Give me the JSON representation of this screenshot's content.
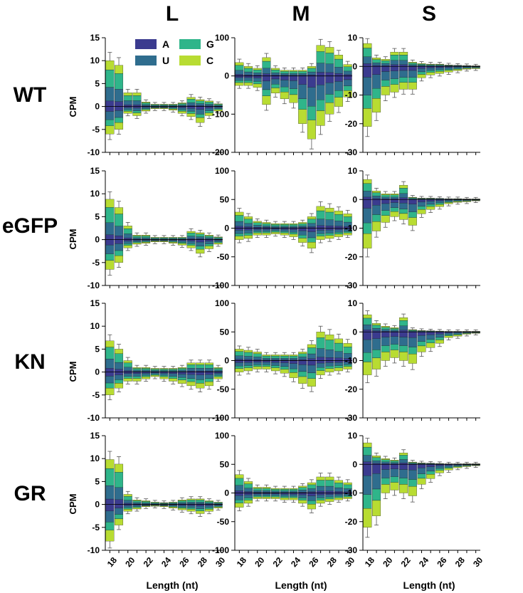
{
  "chart_data": {
    "type": "bar",
    "subtype": "stacked-diverging-grid",
    "columns": [
      "L",
      "M",
      "S"
    ],
    "rows": [
      "WT",
      "eGFP",
      "KN",
      "GR"
    ],
    "ylabel": "CPM",
    "xlabel": "Length (nt)",
    "x": [
      18,
      19,
      20,
      21,
      22,
      23,
      24,
      25,
      26,
      27,
      28,
      29,
      30
    ],
    "x_tick_labels": [
      "18",
      "20",
      "22",
      "24",
      "26",
      "28",
      "30"
    ],
    "legend": [
      {
        "name": "A",
        "color": "#3b3b8f"
      },
      {
        "name": "G",
        "color": "#2fb58a"
      },
      {
        "name": "U",
        "color": "#2f6d8e"
      },
      {
        "name": "C",
        "color": "#b8dc32"
      }
    ],
    "ylims": {
      "L": [
        -10,
        15
      ],
      "M": [
        [
          -200,
          100
        ],
        [
          -100,
          100
        ],
        [
          -100,
          100
        ],
        [
          -100,
          100
        ]
      ],
      "S": [
        -30,
        10
      ]
    },
    "yticks": {
      "L": [
        "15",
        "10",
        "5",
        "0",
        "-5",
        "-10"
      ],
      "M_WT": [
        "100",
        "0",
        "-100",
        "-200"
      ],
      "M": [
        "100",
        "50",
        "0",
        "-50",
        "-100"
      ],
      "S": [
        "10",
        "0",
        "-10",
        "-20",
        "-30"
      ]
    },
    "panels": [
      {
        "row": "WT",
        "col": "L",
        "pos": [
          10,
          9,
          3,
          3,
          1,
          0.5,
          0.5,
          0.5,
          0.8,
          2,
          1.5,
          1.2,
          0.6
        ],
        "neg": [
          -6,
          -5,
          -1.5,
          -2,
          -1,
          -0.5,
          -0.5,
          -0.8,
          -1.5,
          -2.2,
          -3.5,
          -2,
          -1
        ]
      },
      {
        "row": "WT",
        "col": "M",
        "pos": [
          35,
          25,
          20,
          48,
          20,
          15,
          15,
          15,
          25,
          80,
          75,
          55,
          30
        ],
        "neg": [
          -25,
          -25,
          -30,
          -75,
          -45,
          -60,
          -70,
          -125,
          -165,
          -130,
          -100,
          -80,
          -55
        ]
      },
      {
        "row": "WT",
        "col": "S",
        "pos": [
          8,
          3,
          2.5,
          5,
          5,
          1.5,
          1,
          0.8,
          0.8,
          0.5,
          0.4,
          0.3,
          0.2
        ],
        "neg": [
          -21,
          -16,
          -10,
          -9,
          -8,
          -8,
          -4,
          -3,
          -2.5,
          -2,
          -1.5,
          -1,
          -0.8
        ]
      },
      {
        "row": "eGFP",
        "col": "L",
        "pos": [
          8.8,
          7,
          3,
          1,
          1,
          0.5,
          0.5,
          0.5,
          0.5,
          1.8,
          1.5,
          1,
          0.6
        ],
        "neg": [
          -6.5,
          -5,
          -1.8,
          -1,
          -0.8,
          -0.5,
          -0.5,
          -0.8,
          -1.2,
          -1.8,
          -3,
          -2,
          -1
        ]
      },
      {
        "row": "eGFP",
        "col": "M",
        "pos": [
          28,
          20,
          12,
          10,
          8,
          8,
          8,
          10,
          20,
          38,
          35,
          30,
          25
        ],
        "neg": [
          -20,
          -18,
          -12,
          -12,
          -10,
          -12,
          -15,
          -25,
          -35,
          -20,
          -18,
          -15,
          -12
        ]
      },
      {
        "row": "eGFP",
        "col": "S",
        "pos": [
          7,
          3,
          2,
          2,
          5,
          0.8,
          0.5,
          0.5,
          0.4,
          0.3,
          0.3,
          0.2,
          0.2
        ],
        "neg": [
          -17,
          -11,
          -8,
          -6,
          -7,
          -9,
          -5,
          -3.5,
          -2.5,
          -1.5,
          -1,
          -0.8,
          -0.5
        ]
      },
      {
        "row": "KN",
        "col": "L",
        "pos": [
          6.8,
          5,
          2.5,
          1,
          1,
          0.8,
          0.8,
          0.8,
          1,
          2,
          2,
          2,
          1
        ],
        "neg": [
          -5,
          -3.5,
          -2,
          -2,
          -1.5,
          -1,
          -1.5,
          -2,
          -2.5,
          -3,
          -3.5,
          -3,
          -1.5
        ]
      },
      {
        "row": "KN",
        "col": "M",
        "pos": [
          20,
          18,
          15,
          10,
          10,
          10,
          10,
          15,
          28,
          50,
          45,
          38,
          30
        ],
        "neg": [
          -20,
          -18,
          -15,
          -15,
          -18,
          -22,
          -30,
          -40,
          -45,
          -25,
          -20,
          -18,
          -15
        ]
      },
      {
        "row": "KN",
        "col": "S",
        "pos": [
          6,
          3,
          2,
          1.5,
          5,
          0.8,
          0.5,
          0.4,
          0.3,
          0.2,
          0.2,
          0.2,
          0.2
        ],
        "neg": [
          -15,
          -13,
          -10,
          -9,
          -10,
          -11,
          -7,
          -5.5,
          -4,
          -2,
          -1.5,
          -0.8,
          -0.5
        ]
      },
      {
        "row": "GR",
        "col": "L",
        "pos": [
          9.8,
          8.8,
          2.2,
          1,
          0.8,
          0.5,
          0.4,
          0.5,
          1,
          1.2,
          1.2,
          0.8,
          0.5
        ],
        "neg": [
          -8,
          -4.5,
          -1.5,
          -1,
          -0.5,
          -0.4,
          -0.5,
          -0.8,
          -1.2,
          -1.5,
          -2,
          -1.5,
          -0.8
        ]
      },
      {
        "row": "GR",
        "col": "M",
        "pos": [
          32,
          20,
          10,
          10,
          8,
          8,
          8,
          12,
          18,
          28,
          28,
          22,
          18
        ],
        "neg": [
          -25,
          -18,
          -10,
          -10,
          -10,
          -12,
          -12,
          -18,
          -28,
          -18,
          -15,
          -12,
          -10
        ]
      },
      {
        "row": "GR",
        "col": "S",
        "pos": [
          7.5,
          3,
          2,
          1.5,
          4,
          0.8,
          0.5,
          0.4,
          0.3,
          0.2,
          0.2,
          0.2,
          0.2
        ],
        "neg": [
          -22,
          -18,
          -10,
          -9,
          -10,
          -11,
          -7,
          -5,
          -3,
          -2,
          -1.2,
          -0.8,
          -0.5
        ]
      }
    ]
  }
}
